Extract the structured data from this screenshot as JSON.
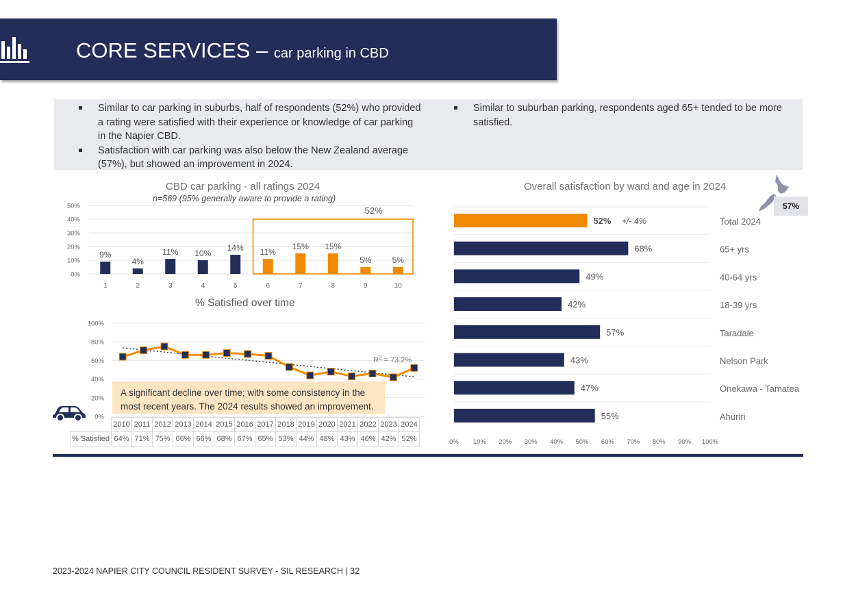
{
  "header": {
    "title_main": "CORE SERVICES – ",
    "title_sub": "car parking in CBD"
  },
  "bullets_left": [
    "Similar to car parking in suburbs, half of respondents (52%) who provided a rating were satisfied with their experience or knowledge of car parking in the Napier CBD.",
    "Satisfaction with car parking was also below the New Zealand average (57%), but showed an improvement in 2024."
  ],
  "bullets_right": [
    "Similar to suburban parking, respondents aged 65+ tended to be more satisfied."
  ],
  "nz_badge": "57%",
  "callout": "A significant decline over time; with some consistency in the most recent years. The 2024 results showed an improvement.",
  "footer": "2023-2024 NAPIER CITY COUNCIL RESIDENT SURVEY - SIL RESEARCH | 32",
  "colors": {
    "navy": "#222d5a",
    "orange": "#f28a00"
  },
  "icons": {
    "header": "bar-chart-icon",
    "car": "car-icon",
    "map": "new-zealand-map-icon"
  },
  "chart_data": [
    {
      "type": "bar",
      "title": "CBD car parking - all ratings 2024",
      "subtitle": "n=569 (95% generally aware to provide a rating)",
      "categories": [
        "1",
        "2",
        "3",
        "4",
        "5",
        "6",
        "7",
        "8",
        "9",
        "10"
      ],
      "values": [
        9,
        4,
        11,
        10,
        14,
        11,
        15,
        15,
        5,
        5
      ],
      "labels": [
        "9%",
        "4%",
        "11%",
        "10%",
        "14%",
        "11%",
        "15%",
        "15%",
        "5%",
        "5%"
      ],
      "highlight_group": {
        "from": "6",
        "to": "10",
        "label": "52%"
      },
      "ylim": [
        0,
        50
      ],
      "yticks": [
        "0%",
        "10%",
        "20%",
        "30%",
        "40%",
        "50%"
      ],
      "colors": [
        "#222d5a",
        "#222d5a",
        "#222d5a",
        "#222d5a",
        "#222d5a",
        "#f28a00",
        "#f28a00",
        "#f28a00",
        "#f28a00",
        "#f28a00"
      ]
    },
    {
      "type": "line",
      "title": "% Satisfied over time",
      "x": [
        "2010",
        "2011",
        "2012",
        "2013",
        "2014",
        "2015",
        "2016",
        "2017",
        "2018",
        "2019",
        "2020",
        "2021",
        "2022",
        "2023",
        "2024"
      ],
      "row_label": "% Satisfied",
      "values": [
        64,
        71,
        75,
        66,
        66,
        68,
        67,
        65,
        53,
        44,
        48,
        43,
        46,
        42,
        52
      ],
      "labels": [
        "64%",
        "71%",
        "75%",
        "66%",
        "66%",
        "68%",
        "67%",
        "65%",
        "53%",
        "44%",
        "48%",
        "43%",
        "46%",
        "42%",
        "52%"
      ],
      "trend": {
        "r2_label": "R",
        "r2_sup": "2",
        "r2_value": " = 73.2%",
        "start": 73.5,
        "end": 42.5
      },
      "ylim": [
        0,
        100
      ],
      "yticks": [
        "0%",
        "20%",
        "40%",
        "60%",
        "80%",
        "100%"
      ]
    },
    {
      "type": "bar",
      "orientation": "horizontal",
      "title": "Overall satisfaction by ward and age in 2024",
      "categories": [
        "Total 2024",
        "65+ yrs",
        "40-64 yrs",
        "18-39 yrs",
        "Taradale",
        "Nelson Park",
        "Onekawa - Tamatea",
        "Ahuriri"
      ],
      "values": [
        52,
        68,
        49,
        42,
        57,
        43,
        47,
        55
      ],
      "labels": [
        "52%",
        "68%",
        "49%",
        "42%",
        "57%",
        "43%",
        "47%",
        "55%"
      ],
      "margin_note": "+/- 4%",
      "xlim": [
        0,
        100
      ],
      "xticks": [
        "0%",
        "10%",
        "20%",
        "30%",
        "40%",
        "50%",
        "60%",
        "70%",
        "80%",
        "90%",
        "100%"
      ],
      "colors": [
        "#f28a00",
        "#222d5a",
        "#222d5a",
        "#222d5a",
        "#222d5a",
        "#222d5a",
        "#222d5a",
        "#222d5a"
      ]
    }
  ]
}
